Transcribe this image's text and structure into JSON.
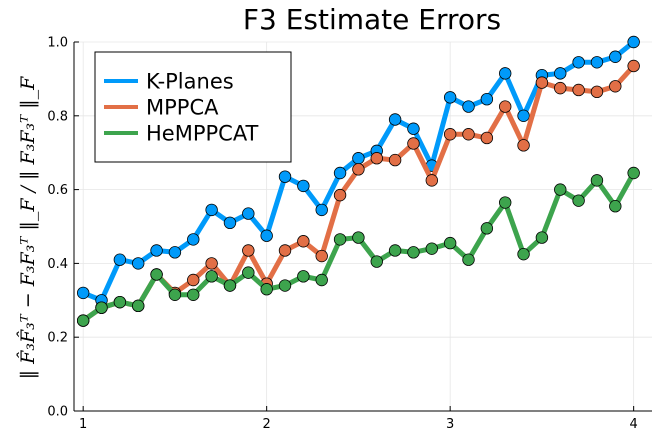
{
  "chart_data": {
    "type": "line",
    "title": "F3 Estimate Errors",
    "ylabel": "‖ F̂₃F̂₃ᵀ − F₃F₃ᵀ ‖_F / ‖ F₃F₃ᵀ ‖_F",
    "xlabel": "",
    "xlim": [
      0.95,
      4.1
    ],
    "ylim": [
      0.0,
      1.0
    ],
    "x_ticks": [
      1,
      2,
      3,
      4
    ],
    "y_ticks": [
      0.0,
      0.2,
      0.4,
      0.6,
      0.8,
      1.0
    ],
    "x_tick_labels": [
      "1",
      "2",
      "3",
      "4"
    ],
    "y_tick_labels": [
      "0.0",
      "0.2",
      "0.4",
      "0.6",
      "0.8",
      "1.0"
    ],
    "grid": true,
    "legend_position": "top-left",
    "x": [
      1.0,
      1.1,
      1.2,
      1.3,
      1.4,
      1.5,
      1.6,
      1.7,
      1.8,
      1.9,
      2.0,
      2.1,
      2.2,
      2.3,
      2.4,
      2.5,
      2.6,
      2.7,
      2.8,
      2.9,
      3.0,
      3.1,
      3.2,
      3.3,
      3.4,
      3.5,
      3.6,
      3.7,
      3.8,
      3.9,
      4.0
    ],
    "series": [
      {
        "name": "K-Planes",
        "color": "#009AFA",
        "values": [
          0.32,
          0.3,
          0.41,
          0.4,
          0.435,
          0.43,
          0.465,
          0.545,
          0.51,
          0.535,
          0.475,
          0.635,
          0.61,
          0.545,
          0.645,
          0.685,
          0.705,
          0.79,
          0.765,
          0.665,
          0.85,
          0.825,
          0.845,
          0.915,
          0.8,
          0.91,
          0.915,
          0.945,
          0.945,
          0.96,
          1.0
        ]
      },
      {
        "name": "MPPCA",
        "color": "#E26F46",
        "values": [
          0.245,
          0.28,
          0.295,
          0.285,
          0.37,
          0.32,
          0.355,
          0.4,
          0.34,
          0.435,
          0.345,
          0.435,
          0.46,
          0.42,
          0.585,
          0.655,
          0.685,
          0.68,
          0.725,
          0.625,
          0.75,
          0.75,
          0.74,
          0.825,
          0.72,
          0.89,
          0.875,
          0.87,
          0.865,
          0.88,
          0.935
        ]
      },
      {
        "name": "HeMPPCAT",
        "color": "#3DA44D",
        "values": [
          0.245,
          0.28,
          0.295,
          0.285,
          0.37,
          0.315,
          0.315,
          0.365,
          0.34,
          0.375,
          0.33,
          0.34,
          0.365,
          0.355,
          0.465,
          0.47,
          0.405,
          0.435,
          0.43,
          0.44,
          0.455,
          0.41,
          0.495,
          0.565,
          0.425,
          0.47,
          0.6,
          0.57,
          0.625,
          0.555,
          0.645
        ]
      }
    ]
  }
}
